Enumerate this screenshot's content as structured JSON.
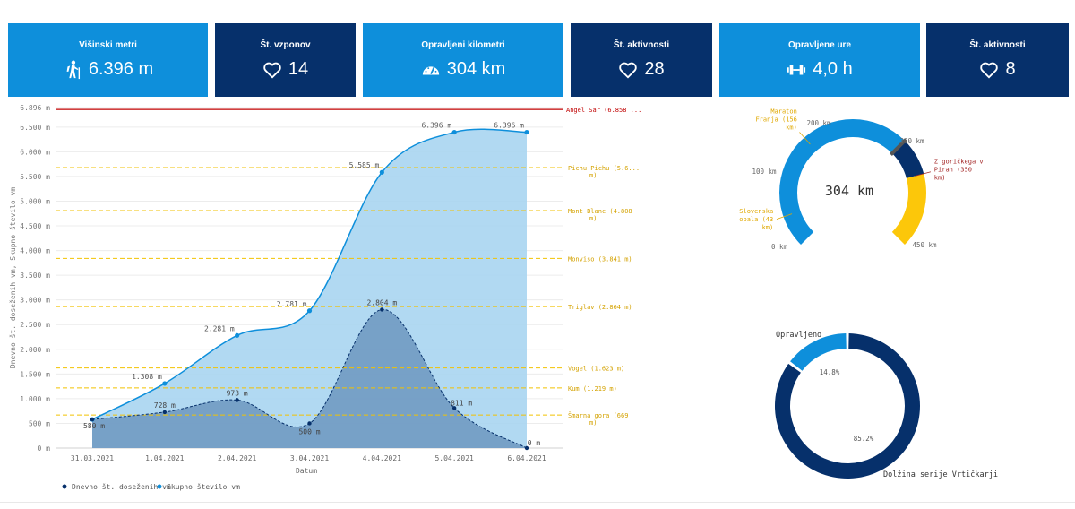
{
  "kpis": [
    {
      "label": "Višinski metri",
      "value": "6.396 m",
      "icon": "hiker-icon",
      "style": "light"
    },
    {
      "label": "Št. vzponov",
      "value": "14",
      "icon": "heart-icon",
      "style": "dark"
    },
    {
      "label": "Opravljeni kilometri",
      "value": "304 km",
      "icon": "speedometer-icon",
      "style": "light"
    },
    {
      "label": "Št. aktivnosti",
      "value": "28",
      "icon": "heart-icon",
      "style": "dark"
    },
    {
      "label": "Opravljene ure",
      "value": "4,0 h",
      "icon": "dumbbell-icon",
      "style": "light"
    },
    {
      "label": "Št. aktivnosti",
      "value": "8",
      "icon": "heart-icon",
      "style": "dark"
    }
  ],
  "colors": {
    "light": "#0e8fdb",
    "dark": "#06306b",
    "area_light": "#a9d5f1",
    "area_dark": "#6d97bf",
    "ref_line": "#f2c200",
    "max_line": "#c00000",
    "gauge_yellow": "#fcc70a"
  },
  "chart_data": [
    {
      "type": "area",
      "title": "",
      "xlabel": "Datum",
      "ylabel": "Dnevno št. doseženih vm, Skupno število vm",
      "categories": [
        "31.03.2021",
        "1.04.2021",
        "2.04.2021",
        "3.04.2021",
        "4.04.2021",
        "5.04.2021",
        "6.04.2021"
      ],
      "series": [
        {
          "name": "Skupno število vm",
          "values": [
            580,
            1308,
            2281,
            2781,
            5585,
            6396,
            6396
          ],
          "labels": [
            "",
            "1.308 m",
            "2.281 m",
            "2.781 m",
            "5.585 m",
            "6.396 m",
            "6.396 m"
          ]
        },
        {
          "name": "Dnevno št. doseženih vm",
          "values": [
            580,
            728,
            973,
            500,
            2804,
            811,
            0
          ],
          "labels": [
            "580 m",
            "728 m",
            "973 m",
            "500 m",
            "2.804 m",
            "811 m",
            "0 m"
          ]
        }
      ],
      "ylim": [
        0,
        6896
      ],
      "yticks": [
        0,
        500,
        1000,
        1500,
        2000,
        2500,
        3000,
        3500,
        4000,
        4500,
        5000,
        5500,
        6000,
        6500,
        6896
      ],
      "ytick_labels": [
        "0 m",
        "500 m",
        "1.000 m",
        "1.500 m",
        "2.000 m",
        "2.500 m",
        "3.000 m",
        "3.500 m",
        "4.000 m",
        "4.500 m",
        "5.000 m",
        "5.500 m",
        "6.000 m",
        "6.500 m",
        "6.896 m"
      ],
      "reference_lines": [
        {
          "value": 6858,
          "label": "Angel Sar (6.858 ...",
          "kind": "max"
        },
        {
          "value": 5680,
          "label": "Pichu Pichu (5.6...",
          "label2": "m)",
          "kind": "ref"
        },
        {
          "value": 4808,
          "label": "Mont Blanc (4.808",
          "label2": "m)",
          "kind": "ref"
        },
        {
          "value": 3841,
          "label": "Monviso (3.841 m)",
          "kind": "ref"
        },
        {
          "value": 2864,
          "label": "Triglav (2.864 m)",
          "kind": "ref"
        },
        {
          "value": 1623,
          "label": "Vogel (1.623 m)",
          "kind": "ref"
        },
        {
          "value": 1219,
          "label": "Kum (1.219 m)",
          "kind": "ref"
        },
        {
          "value": 669,
          "label": "Šmarna gora (669",
          "label2": "m)",
          "kind": "ref"
        }
      ],
      "legend": [
        {
          "name": "Dnevno št. doseženih vm",
          "color": "#06306b"
        },
        {
          "name": "Skupno število vm",
          "color": "#0e8fdb"
        }
      ],
      "legend_position": "bottom-left",
      "grid": true
    },
    {
      "type": "gauge",
      "value": 304,
      "value_label": "304 km",
      "min": 0,
      "max": 450,
      "target": 300,
      "ticks": [
        {
          "v": 0,
          "label": "0 km"
        },
        {
          "v": 100,
          "label": "100 km"
        },
        {
          "v": 200,
          "label": "200 km"
        },
        {
          "v": 300,
          "label": "300 km"
        },
        {
          "v": 450,
          "label": "450 km"
        }
      ],
      "segments": [
        {
          "from": 0,
          "to": 300,
          "color": "#0e8fdb"
        },
        {
          "from": 300,
          "to": 350,
          "color": "#06306b"
        },
        {
          "from": 350,
          "to": 450,
          "color": "#fcc70a"
        }
      ],
      "markers": [
        {
          "v": 43,
          "lines": [
            "Slovenska",
            "obala (43",
            "km)"
          ],
          "color": "#e0a800"
        },
        {
          "v": 156,
          "lines": [
            "Maraton",
            "Franja (156",
            "km)"
          ],
          "color": "#e0a800"
        },
        {
          "v": 350,
          "lines": [
            "Z goričkega v",
            "Piran (350",
            "km)"
          ],
          "color": "#a52a2a"
        }
      ]
    },
    {
      "type": "pie",
      "donut": true,
      "slices": [
        {
          "label": "Opravljeno",
          "value": 14.8,
          "pct": "14.8%",
          "color": "#0e8fdb"
        },
        {
          "label": "Dolžina serije Vrtičkarji",
          "value": 85.2,
          "pct": "85.2%",
          "color": "#06306b"
        }
      ]
    }
  ]
}
